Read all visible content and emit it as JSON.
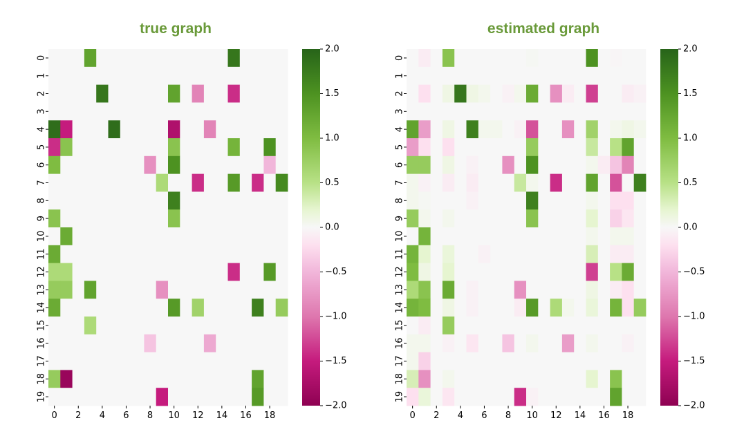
{
  "chart_data": [
    {
      "type": "heatmap",
      "title": "true graph",
      "rows": 20,
      "cols": 20,
      "x_tick_labels": [
        "0",
        "2",
        "4",
        "6",
        "8",
        "10",
        "12",
        "14",
        "16",
        "18"
      ],
      "y_tick_labels": [
        "0",
        "1",
        "2",
        "3",
        "4",
        "5",
        "6",
        "7",
        "8",
        "9",
        "10",
        "11",
        "12",
        "13",
        "14",
        "15",
        "16",
        "17",
        "18",
        "19"
      ],
      "colorbar": {
        "min": -2.0,
        "max": 2.0,
        "ticks": [
          "2.0",
          "1.5",
          "1.0",
          "0.5",
          "0.0",
          "−0.5",
          "−1.0",
          "−1.5",
          "−2.0"
        ]
      },
      "matrix": [
        [
          0,
          0,
          0,
          1.3,
          0,
          0,
          0,
          0,
          0,
          0,
          0,
          0,
          0,
          0,
          0,
          1.8,
          0,
          0,
          0,
          0
        ],
        [
          0,
          0,
          0,
          0,
          0,
          0,
          0,
          0,
          0,
          0,
          0,
          0,
          0,
          0,
          0,
          0,
          0,
          0,
          0,
          0
        ],
        [
          0,
          0,
          0,
          0,
          1.8,
          0,
          0,
          0,
          0,
          0,
          1.3,
          0,
          -0.9,
          0,
          0,
          -1.4,
          0,
          0,
          0,
          0
        ],
        [
          0,
          0,
          0,
          0,
          0,
          0,
          0,
          0,
          0,
          0,
          0,
          0,
          0,
          0,
          0,
          0,
          0,
          0,
          0,
          0
        ],
        [
          1.9,
          -1.5,
          0,
          0,
          0,
          1.9,
          0,
          0,
          0,
          0,
          -1.7,
          0,
          0,
          -0.9,
          0,
          0,
          0,
          0,
          0,
          0
        ],
        [
          -1.4,
          0.9,
          0,
          0,
          0,
          0,
          0,
          0,
          0,
          0,
          0.9,
          0,
          0,
          0,
          0,
          1.1,
          0,
          0,
          1.5,
          0
        ],
        [
          1.0,
          0,
          0,
          0,
          0,
          0,
          0,
          0,
          -0.8,
          0,
          1.5,
          0,
          0,
          0,
          0,
          0,
          0,
          0,
          -0.5,
          0
        ],
        [
          0,
          0,
          0,
          0,
          0,
          0,
          0,
          0,
          0,
          0.6,
          0,
          0,
          -1.4,
          0,
          0,
          1.4,
          0,
          -1.4,
          0,
          1.6
        ],
        [
          0,
          0,
          0,
          0,
          0,
          0,
          0,
          0,
          0,
          0,
          1.7,
          0,
          0,
          0,
          0,
          0,
          0,
          0,
          0,
          0
        ],
        [
          0.9,
          0,
          0,
          0,
          0,
          0,
          0,
          0,
          0,
          0,
          0.9,
          0,
          0,
          0,
          0,
          0,
          0,
          0,
          0,
          0
        ],
        [
          0,
          1.2,
          0,
          0,
          0,
          0,
          0,
          0,
          0,
          0,
          0,
          0,
          0,
          0,
          0,
          0,
          0,
          0,
          0,
          0
        ],
        [
          1.2,
          0,
          0,
          0,
          0,
          0,
          0,
          0,
          0,
          0,
          0,
          0,
          0,
          0,
          0,
          0,
          0,
          0,
          0,
          0
        ],
        [
          0.6,
          0.6,
          0,
          0,
          0,
          0,
          0,
          0,
          0,
          0,
          0,
          0,
          0,
          0,
          0,
          -1.4,
          0,
          0,
          1.4,
          0
        ],
        [
          0.8,
          0.8,
          0,
          1.3,
          0,
          0,
          0,
          0,
          0,
          -0.8,
          0,
          0,
          0,
          0,
          0,
          0,
          0,
          0,
          0,
          0
        ],
        [
          1.2,
          0,
          0,
          0,
          0,
          0,
          0,
          0,
          0,
          0,
          1.4,
          0,
          0.7,
          0,
          0,
          0,
          0,
          1.7,
          0,
          0.8
        ],
        [
          0,
          0,
          0,
          0.6,
          0,
          0,
          0,
          0,
          0,
          0,
          0,
          0,
          0,
          0,
          0,
          0,
          0,
          0,
          0,
          0
        ],
        [
          0,
          0,
          0,
          0,
          0,
          0,
          0,
          0,
          -0.4,
          0,
          0,
          0,
          0,
          -0.6,
          0,
          0,
          0,
          0,
          0,
          0
        ],
        [
          0,
          0,
          0,
          0,
          0,
          0,
          0,
          0,
          0,
          0,
          0,
          0,
          0,
          0,
          0,
          0,
          0,
          0,
          0,
          0
        ],
        [
          0.8,
          -1.9,
          0,
          0,
          0,
          0,
          0,
          0,
          0,
          0,
          0,
          0,
          0,
          0,
          0,
          0,
          0,
          1.3,
          0,
          0
        ],
        [
          0,
          0,
          0,
          0,
          0,
          0,
          0,
          0,
          0,
          -1.5,
          0,
          0,
          0,
          0,
          0,
          0,
          0,
          1.4,
          0,
          0
        ]
      ]
    },
    {
      "type": "heatmap",
      "title": "estimated graph",
      "rows": 20,
      "cols": 20,
      "x_tick_labels": [
        "0",
        "2",
        "4",
        "6",
        "8",
        "10",
        "12",
        "14",
        "16",
        "18"
      ],
      "y_tick_labels": [
        "0",
        "1",
        "2",
        "3",
        "4",
        "5",
        "6",
        "7",
        "8",
        "9",
        "10",
        "11",
        "12",
        "13",
        "14",
        "15",
        "16",
        "17",
        "18",
        "19"
      ],
      "colorbar": {
        "min": -2.0,
        "max": 2.0,
        "ticks": [
          "2.0",
          "1.5",
          "1.0",
          "0.5",
          "0.0",
          "−0.5",
          "−1.0",
          "−1.5",
          "−2.0"
        ]
      },
      "matrix": [
        [
          0,
          -0.1,
          0,
          0.9,
          0,
          0,
          0,
          0,
          0,
          0,
          0.02,
          0,
          0,
          0,
          0,
          1.5,
          0,
          -0.02,
          0,
          0
        ],
        [
          0,
          0,
          0,
          0,
          0,
          0,
          0,
          0,
          0,
          0,
          0,
          0,
          0,
          0,
          0,
          0,
          0,
          0,
          0,
          0
        ],
        [
          0,
          -0.2,
          0,
          0.1,
          1.8,
          0.1,
          0.05,
          0,
          -0.05,
          0.05,
          1.2,
          0,
          -0.8,
          -0.1,
          0,
          -1.3,
          0,
          0,
          -0.1,
          -0.05
        ],
        [
          0,
          0,
          0,
          0,
          0,
          0,
          0,
          0,
          0,
          0,
          0,
          0,
          0,
          0,
          0,
          0,
          0,
          0,
          0,
          0
        ],
        [
          1.3,
          -0.7,
          0,
          0.1,
          0,
          1.7,
          0.05,
          0.05,
          0,
          -0.05,
          -1.2,
          0,
          0,
          -0.8,
          0,
          0.7,
          0,
          0.05,
          0.1,
          0.05
        ],
        [
          -0.7,
          -0.2,
          0,
          -0.2,
          0,
          0,
          0,
          0,
          0,
          0,
          0.8,
          0,
          0,
          0,
          0,
          0.4,
          0,
          0.5,
          1.3,
          0
        ],
        [
          0.8,
          0.8,
          0,
          0.1,
          0,
          -0.05,
          0,
          0,
          -0.8,
          0,
          1.5,
          0,
          0,
          0,
          0,
          0.05,
          -0.1,
          -0.4,
          -0.9,
          0
        ],
        [
          0.05,
          -0.05,
          0,
          -0.1,
          0,
          -0.1,
          0,
          0,
          0,
          0.4,
          0.05,
          0,
          -1.4,
          0,
          0,
          1.3,
          0,
          -1.2,
          0,
          1.7
        ],
        [
          0.05,
          0.02,
          0,
          0,
          0,
          -0.05,
          0,
          0,
          0,
          0,
          1.7,
          0,
          0,
          0,
          0,
          0.05,
          0,
          -0.2,
          -0.2,
          0
        ],
        [
          0.8,
          0.05,
          0,
          0.05,
          0,
          0,
          0,
          0,
          0,
          0,
          0.9,
          0,
          0,
          0,
          0,
          0.2,
          0,
          -0.3,
          -0.15,
          0
        ],
        [
          0,
          1.1,
          0,
          0,
          0,
          0,
          0,
          0,
          0,
          0,
          0,
          0,
          0,
          0,
          0,
          0.05,
          0,
          0.05,
          0.05,
          0
        ],
        [
          1.1,
          0.2,
          0,
          0.15,
          0,
          0,
          -0.05,
          0,
          0,
          0,
          0,
          0,
          0,
          0,
          0,
          0.3,
          0,
          -0.1,
          -0.1,
          0
        ],
        [
          1.0,
          0.1,
          0,
          0.2,
          0,
          0,
          0,
          0,
          0,
          0,
          0,
          0,
          0,
          0,
          0,
          -1.3,
          0,
          0.5,
          1.2,
          0
        ],
        [
          0.6,
          0.9,
          0,
          1.2,
          0,
          -0.05,
          0,
          0,
          0,
          -0.8,
          0,
          0,
          0,
          0,
          0,
          0.1,
          0,
          -0.1,
          -0.2,
          0
        ],
        [
          1.1,
          1.0,
          0,
          0.1,
          0,
          -0.05,
          0,
          0,
          0,
          -0.1,
          1.4,
          0,
          0.6,
          0.05,
          0,
          0.15,
          0,
          1.1,
          -0.2,
          0.8
        ],
        [
          0,
          -0.1,
          0,
          0.8,
          0,
          0,
          0,
          0,
          0,
          0,
          0,
          0,
          0,
          0,
          0,
          0,
          0,
          0,
          0,
          0
        ],
        [
          0.05,
          0.05,
          0,
          -0.05,
          0,
          -0.15,
          0,
          0,
          -0.4,
          0,
          0.05,
          0,
          0,
          -0.7,
          0,
          0.05,
          0,
          0,
          -0.05,
          0
        ],
        [
          0.05,
          -0.3,
          0,
          0,
          0,
          0,
          0,
          0,
          0,
          0,
          0,
          0,
          0,
          0,
          0,
          0,
          0,
          0,
          0,
          0
        ],
        [
          0.3,
          -0.8,
          0,
          0.05,
          0,
          0,
          0,
          0,
          0,
          0,
          0,
          0,
          0,
          0,
          0,
          0.2,
          0,
          0.9,
          0,
          0
        ],
        [
          -0.2,
          0.15,
          0,
          -0.15,
          0,
          0,
          0,
          0,
          0,
          -1.4,
          -0.05,
          0,
          0,
          0,
          0,
          0,
          0,
          1.3,
          0,
          0
        ]
      ]
    }
  ],
  "colors": {
    "title": "#6a9a3a",
    "panel_bg": "#f7f7f7",
    "colormap_stops": [
      [
        "#8e0152",
        -2.0
      ],
      [
        "#c51b7d",
        -1.5
      ],
      [
        "#de77ae",
        -1.0
      ],
      [
        "#f1b6da",
        -0.5
      ],
      [
        "#fde0ef",
        -0.2
      ],
      [
        "#f7f7f7",
        0.0
      ],
      [
        "#e6f5d0",
        0.2
      ],
      [
        "#b8e186",
        0.5
      ],
      [
        "#7fbc41",
        1.0
      ],
      [
        "#4d9221",
        1.5
      ],
      [
        "#276419",
        2.0
      ]
    ]
  }
}
